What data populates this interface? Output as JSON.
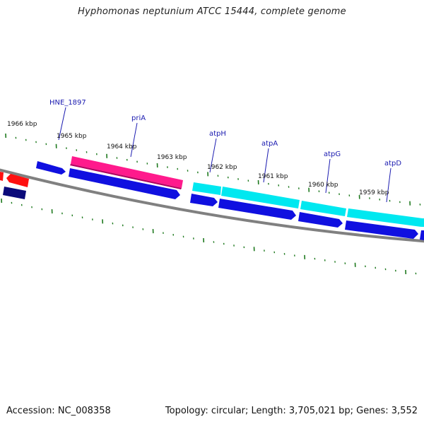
{
  "title": "Hyphomonas neptunium ATCC 15444, complete genome",
  "footer": {
    "accession": "Accession: NC_008358",
    "summary": "Topology: circular; Length: 3,705,021 bp; Genes: 3,552"
  },
  "colors": {
    "backbone": "#808080",
    "tick": "#1f7a1f",
    "cds": "#1010e0",
    "cds_dark": "#0a0a7a",
    "primary": "#ff1a8c",
    "atp": "#00e8f0",
    "red": "#ff1010",
    "label": "#1a1ab0"
  },
  "position_labels": [
    "1966 kbp",
    "1965 kbp",
    "1964 kbp",
    "1963 kbp",
    "1962 kbp",
    "1961 kbp",
    "1960 kbp",
    "1959 kbp"
  ],
  "gene_labels": [
    "HNE_1897",
    "priA",
    "atpH",
    "atpA",
    "atpG",
    "atpD"
  ]
}
